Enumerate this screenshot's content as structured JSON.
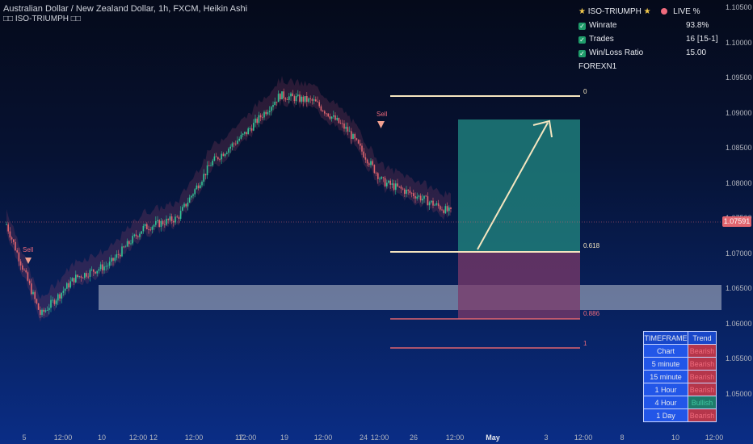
{
  "header": {
    "title": "Australian Dollar / New Zealand Dollar, 1h, FXCM, Heikin Ashi",
    "indicator": "□□ ISO-TRIUMPH □□"
  },
  "stats_panel": {
    "title": "ISO-TRIUMPH",
    "live_label": "LIVE %",
    "rows": [
      {
        "label": "Winrate",
        "value": "93.8%"
      },
      {
        "label": "Trades",
        "value": "16 [15-1]"
      },
      {
        "label": "Win/Loss Ratio",
        "value": "15.00"
      }
    ],
    "account": "FOREXN1"
  },
  "price_axis": {
    "ticks": [
      "1.10500",
      "1.10000",
      "1.09500",
      "1.09000",
      "1.08500",
      "1.08000",
      "1.07500",
      "1.07000",
      "1.06500",
      "1.06000",
      "1.05500",
      "1.05000"
    ],
    "current_price": "1.07591"
  },
  "time_axis": {
    "ticks": [
      "5",
      "12:00",
      "10",
      "12:00",
      "12",
      "12:00",
      "17",
      "12:00",
      "19",
      "12:00",
      "24",
      "12:00",
      "26",
      "12:00",
      "May",
      "3",
      "12:00",
      "8",
      "10",
      "12:00"
    ]
  },
  "fib_levels": [
    "0",
    "0.618",
    "0.886",
    "1"
  ],
  "signals": [
    "Sell",
    "Sell"
  ],
  "timeframe_table": {
    "headers": [
      "TIMEFRAME",
      "Trend"
    ],
    "rows": [
      {
        "timeframe": "Chart",
        "trend": "Bearish"
      },
      {
        "timeframe": "5 minute",
        "trend": "Bearish"
      },
      {
        "timeframe": "15 minute",
        "trend": "Bearish"
      },
      {
        "timeframe": "1 Hour",
        "trend": "Bearish"
      },
      {
        "timeframe": "4 Hour",
        "trend": "Bullish"
      },
      {
        "timeframe": "1 Day",
        "trend": "Bearish"
      }
    ]
  },
  "colors": {
    "bearish_cell": "#b5364b",
    "bearish_text": "#f06b7d",
    "bullish_cell": "#1f7a6a",
    "bullish_text": "#3ec9a0",
    "profit_zone": "#1f7d7a",
    "loss_zone": "#7b3a6a",
    "fib_line": "#f5e6c0"
  },
  "chart_data": {
    "type": "line",
    "x": [
      "5",
      "12:00",
      "10",
      "12:00",
      "12",
      "12:00",
      "17",
      "12:00",
      "19",
      "12:00",
      "24",
      "12:00",
      "26",
      "12:00"
    ],
    "series": [
      {
        "values": [
          1.0742,
          1.0613,
          1.0666,
          1.0685,
          1.0737,
          1.0751,
          1.083,
          1.0872,
          1.0926,
          1.0917,
          1.0875,
          1.0803,
          1.0783,
          1.0759
        ]
      }
    ],
    "ylim": [
      1.0475,
      1.105
    ]
  }
}
